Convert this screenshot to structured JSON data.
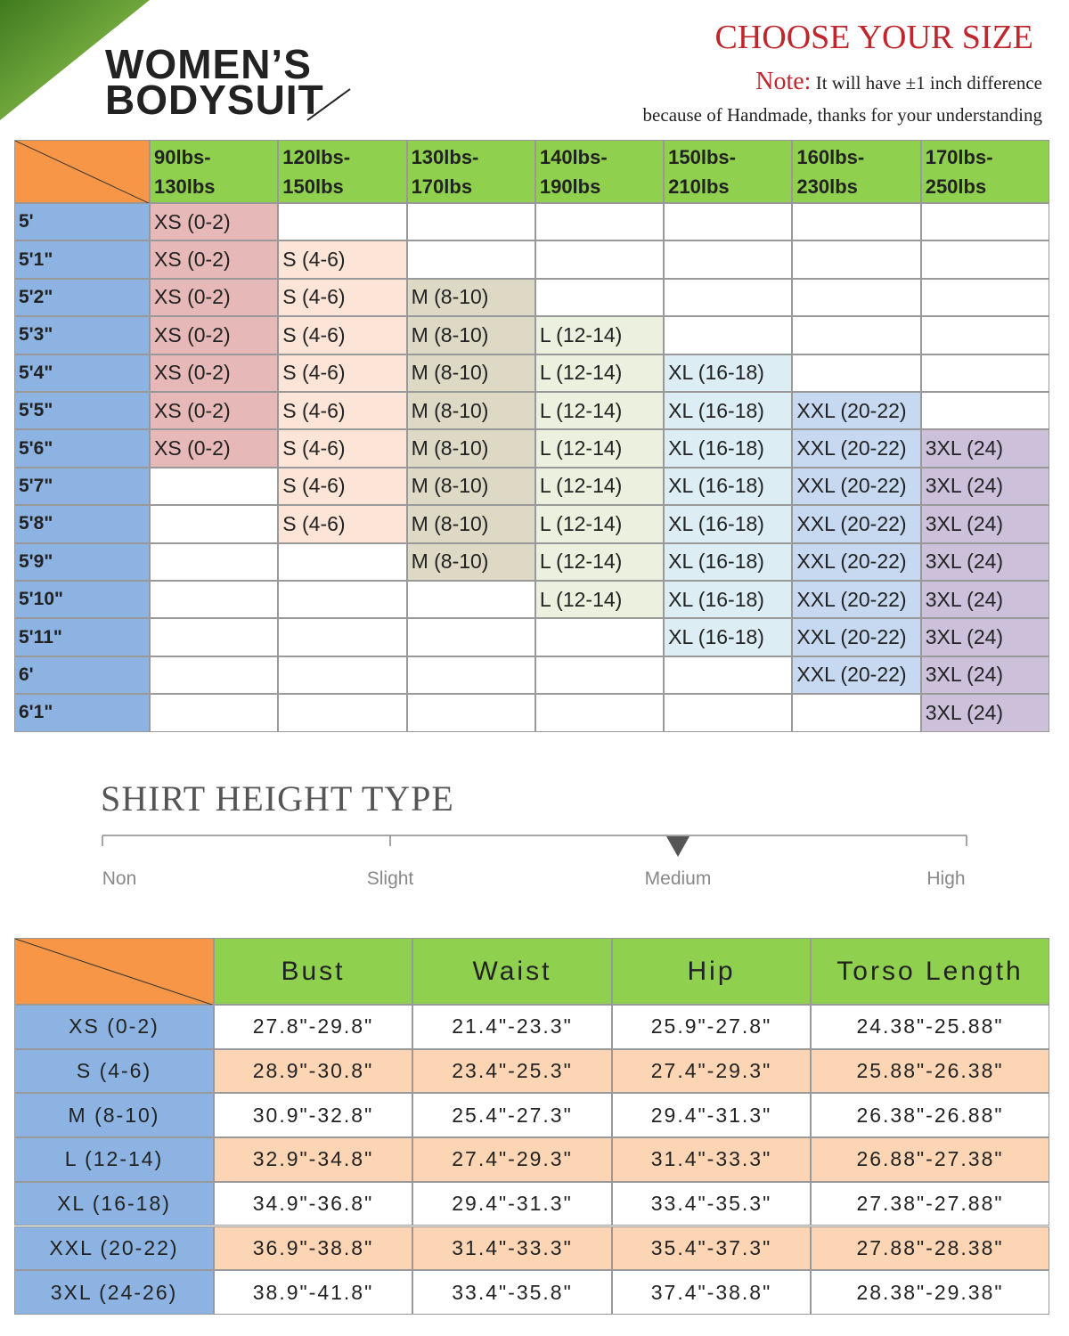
{
  "header": {
    "title_line1": "WOMEN’S",
    "title_line2": "BODYSUIT",
    "heading": "CHOOSE YOUR SIZE",
    "note_label": "Note:",
    "note_text": "It will have ±1 inch difference",
    "note_text2": "because of Handmade, thanks for your understanding"
  },
  "size_table": {
    "columns": [
      [
        "90lbs-",
        "130lbs"
      ],
      [
        "120lbs-",
        "150lbs"
      ],
      [
        "130lbs-",
        "170lbs"
      ],
      [
        "140lbs-",
        "190lbs"
      ],
      [
        "150lbs-",
        "210lbs"
      ],
      [
        "160lbs-",
        "230lbs"
      ],
      [
        "170lbs-",
        "250lbs"
      ]
    ],
    "rows": [
      {
        "height": "5'",
        "cells": [
          "XS (0-2)",
          null,
          null,
          null,
          null,
          null,
          null
        ]
      },
      {
        "height": "5'1\"",
        "cells": [
          "XS (0-2)",
          "S (4-6)",
          null,
          null,
          null,
          null,
          null
        ]
      },
      {
        "height": "5'2\"",
        "cells": [
          "XS (0-2)",
          "S (4-6)",
          "M (8-10)",
          null,
          null,
          null,
          null
        ]
      },
      {
        "height": "5'3\"",
        "cells": [
          "XS (0-2)",
          "S (4-6)",
          "M (8-10)",
          "L (12-14)",
          null,
          null,
          null
        ]
      },
      {
        "height": "5'4\"",
        "cells": [
          "XS (0-2)",
          "S (4-6)",
          "M (8-10)",
          "L (12-14)",
          "XL (16-18)",
          null,
          null
        ]
      },
      {
        "height": "5'5\"",
        "cells": [
          "XS (0-2)",
          "S (4-6)",
          "M (8-10)",
          "L (12-14)",
          "XL (16-18)",
          "XXL (20-22)",
          null
        ]
      },
      {
        "height": "5'6\"",
        "cells": [
          "XS (0-2)",
          "S (4-6)",
          "M (8-10)",
          "L (12-14)",
          "XL (16-18)",
          "XXL (20-22)",
          "3XL (24)"
        ]
      },
      {
        "height": "5'7\"",
        "cells": [
          null,
          "S (4-6)",
          "M (8-10)",
          "L (12-14)",
          "XL (16-18)",
          "XXL (20-22)",
          "3XL (24)"
        ]
      },
      {
        "height": "5'8\"",
        "cells": [
          null,
          "S (4-6)",
          "M (8-10)",
          "L (12-14)",
          "XL (16-18)",
          "XXL (20-22)",
          "3XL (24)"
        ]
      },
      {
        "height": "5'9\"",
        "cells": [
          null,
          null,
          "M (8-10)",
          "L (12-14)",
          "XL (16-18)",
          "XXL (20-22)",
          "3XL (24)"
        ]
      },
      {
        "height": "5'10\"",
        "cells": [
          null,
          null,
          null,
          "L (12-14)",
          "XL (16-18)",
          "XXL (20-22)",
          "3XL (24)"
        ]
      },
      {
        "height": "5'11\"",
        "cells": [
          null,
          null,
          null,
          null,
          "XL (16-18)",
          "XXL (20-22)",
          "3XL (24)"
        ]
      },
      {
        "height": "6'",
        "cells": [
          null,
          null,
          null,
          null,
          null,
          "XXL (20-22)",
          "3XL (24)"
        ]
      },
      {
        "height": "6'1\"",
        "cells": [
          null,
          null,
          null,
          null,
          null,
          null,
          "3XL (24)"
        ]
      }
    ]
  },
  "height_type": {
    "title": "SHIRT HEIGHT TYPE",
    "levels": [
      "Non",
      "Slight",
      "Medium",
      "High"
    ],
    "selected_level": 2
  },
  "measure_table": {
    "columns": [
      "Bust",
      "Waist",
      "Hip",
      "Torso Length"
    ],
    "rows": [
      {
        "size": "XS (0-2)",
        "values": [
          "27.8\"-29.8\"",
          "21.4\"-23.3\"",
          "25.9\"-27.8\"",
          "24.38\"-25.88\""
        ]
      },
      {
        "size": "S (4-6)",
        "values": [
          "28.9\"-30.8\"",
          "23.4\"-25.3\"",
          "27.4\"-29.3\"",
          "25.88\"-26.38\""
        ]
      },
      {
        "size": "M (8-10)",
        "values": [
          "30.9\"-32.8\"",
          "25.4\"-27.3\"",
          "29.4\"-31.3\"",
          "26.38\"-26.88\""
        ]
      },
      {
        "size": "L (12-14)",
        "values": [
          "32.9\"-34.8\"",
          "27.4\"-29.3\"",
          "31.4\"-33.3\"",
          "26.88\"-27.38\""
        ]
      },
      {
        "size": "XL (16-18)",
        "values": [
          "34.9\"-36.8\"",
          "29.4\"-31.3\"",
          "33.4\"-35.3\"",
          "27.38\"-27.88\""
        ]
      },
      {
        "size": "XXL (20-22)",
        "values": [
          "36.9\"-38.8\"",
          "31.4\"-33.3\"",
          "35.4\"-37.3\"",
          "27.88\"-28.38\""
        ]
      },
      {
        "size": "3XL (24-26)",
        "values": [
          "38.9\"-41.8\"",
          "33.4\"-35.8\"",
          "37.4\"-38.8\"",
          "28.38\"-29.38\""
        ]
      }
    ]
  }
}
